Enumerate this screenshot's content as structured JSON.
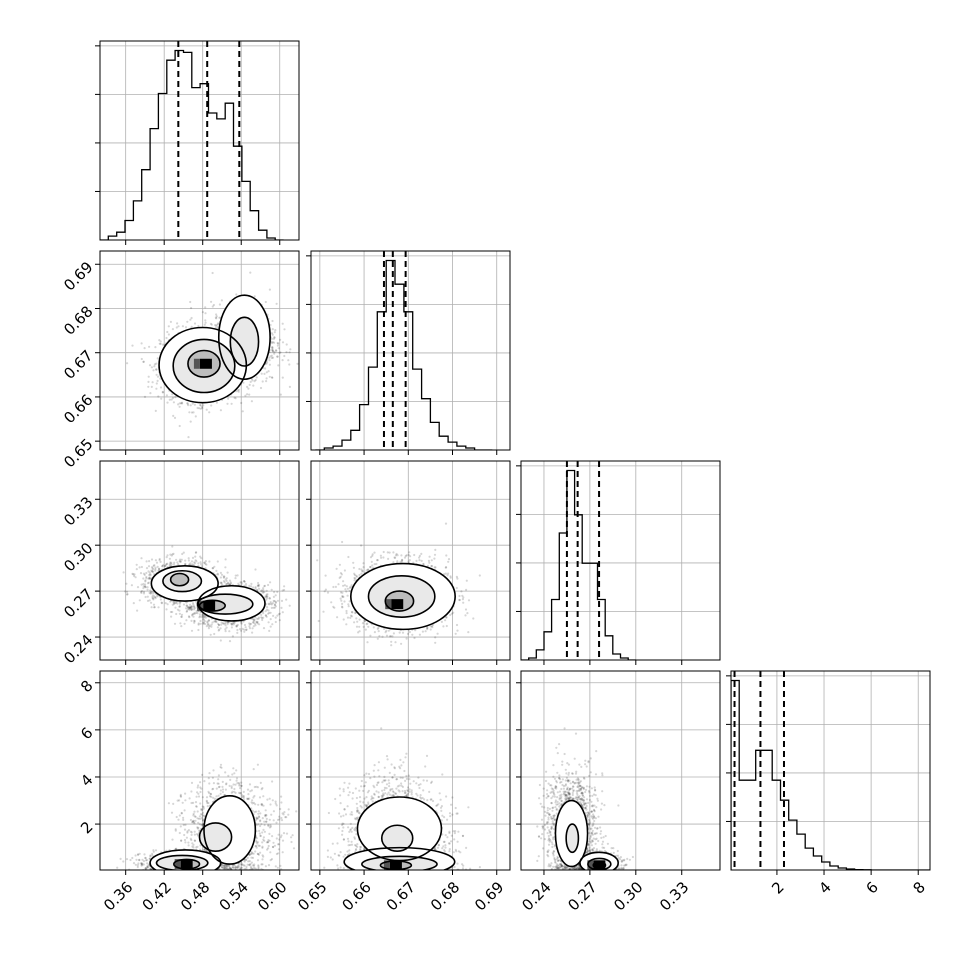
{
  "chart_data": {
    "type": "scatter",
    "title": "",
    "params": [
      {
        "range": [
          0.32,
          0.63
        ],
        "ticks": [
          0.36,
          0.42,
          0.48,
          0.54,
          0.6
        ],
        "tick_labels": [
          "0.36",
          "0.42",
          "0.48",
          "0.54",
          "0.60"
        ],
        "quantiles": [
          0.442,
          0.487,
          0.537
        ],
        "hist": {
          "edges": [
            0.32,
            0.333,
            0.346,
            0.359,
            0.372,
            0.385,
            0.398,
            0.411,
            0.424,
            0.437,
            0.45,
            0.463,
            0.476,
            0.489,
            0.502,
            0.515,
            0.528,
            0.541,
            0.554,
            0.567,
            0.58,
            0.593,
            0.606
          ],
          "counts": [
            0,
            2,
            4,
            10,
            20,
            36,
            57,
            75,
            92,
            97,
            96,
            78,
            80,
            65,
            62,
            70,
            48,
            30,
            15,
            5,
            1,
            0
          ]
        }
      },
      {
        "range": [
          0.648,
          0.693
        ],
        "ticks": [
          0.65,
          0.66,
          0.67,
          0.68,
          0.69
        ],
        "tick_labels": [
          "0.65",
          "0.66",
          "0.67",
          "0.68",
          "0.69"
        ],
        "quantiles": [
          0.6645,
          0.6665,
          0.6694
        ],
        "hist": {
          "edges": [
            0.649,
            0.651,
            0.653,
            0.655,
            0.657,
            0.659,
            0.661,
            0.663,
            0.665,
            0.667,
            0.669,
            0.671,
            0.673,
            0.675,
            0.677,
            0.679,
            0.681,
            0.683,
            0.685,
            0.687,
            0.689
          ],
          "counts": [
            0,
            1,
            2,
            5,
            10,
            23,
            42,
            70,
            96,
            84,
            70,
            41,
            26,
            14,
            7,
            4,
            2,
            1,
            0,
            0
          ]
        }
      },
      {
        "range": [
          0.225,
          0.355
        ],
        "ticks": [
          0.24,
          0.27,
          0.3,
          0.33
        ],
        "tick_labels": [
          "0.24",
          "0.27",
          "0.30",
          "0.33"
        ],
        "quantiles": [
          0.255,
          0.262,
          0.276
        ],
        "hist": {
          "edges": [
            0.225,
            0.23,
            0.235,
            0.24,
            0.245,
            0.25,
            0.255,
            0.26,
            0.265,
            0.27,
            0.275,
            0.28,
            0.285,
            0.29,
            0.295,
            0.3
          ],
          "counts": [
            0,
            1,
            5,
            14,
            30,
            63,
            94,
            72,
            48,
            48,
            30,
            12,
            3,
            1,
            0
          ]
        }
      },
      {
        "range": [
          0.05,
          8.5
        ],
        "ticks": [
          2,
          4,
          6,
          8
        ],
        "tick_labels": [
          "2",
          "4",
          "6",
          "8"
        ],
        "y_ticks": [
          2,
          4,
          6,
          8
        ],
        "y_tick_labels": [
          "2",
          "4",
          "6",
          "8"
        ],
        "quantiles": [
          0.2,
          1.3,
          2.3
        ],
        "hist": {
          "edges": [
            0.05,
            0.4,
            0.75,
            1.1,
            1.45,
            1.8,
            2.15,
            2.5,
            2.85,
            3.2,
            3.55,
            3.9,
            4.25,
            4.6,
            4.95,
            5.3,
            5.65,
            6.0,
            8.5
          ],
          "counts": [
            95,
            45,
            45,
            60,
            60,
            45,
            35,
            25,
            18,
            11,
            7,
            4,
            2,
            1,
            0.5,
            0.2,
            0.1,
            0
          ]
        }
      }
    ],
    "pairs": [
      {
        "row": 1,
        "col": 0,
        "scatter": {
          "blobs": [
            {
              "cx": 0.475,
              "cy": 0.667,
              "sx": 0.03,
              "sy": 0.004,
              "n": 1500
            },
            {
              "cx": 0.545,
              "cy": 0.672,
              "sx": 0.025,
              "sy": 0.0045,
              "n": 900
            }
          ]
        },
        "contours": [
          {
            "level": "outer",
            "shape": "pair",
            "a": {
              "cx": 0.48,
              "cy": 0.6672,
              "rx": 0.068,
              "ry": 0.0085
            },
            "b": {
              "cx": 0.545,
              "cy": 0.6735,
              "rx": 0.04,
              "ry": 0.0095
            }
          },
          {
            "level": "mid",
            "shape": "pair",
            "a": {
              "cx": 0.482,
              "cy": 0.667,
              "rx": 0.048,
              "ry": 0.006
            },
            "b": {
              "cx": 0.545,
              "cy": 0.6725,
              "rx": 0.022,
              "ry": 0.0055
            }
          },
          {
            "level": "inner",
            "shape": "ellipse",
            "a": {
              "cx": 0.482,
              "cy": 0.6675,
              "rx": 0.025,
              "ry": 0.003
            }
          }
        ],
        "peak": {
          "x": 0.485,
          "y": 0.6675
        }
      },
      {
        "row": 2,
        "col": 0,
        "scatter": {
          "blobs": [
            {
              "cx": 0.445,
              "cy": 0.276,
              "sx": 0.03,
              "sy": 0.007,
              "n": 1100
            },
            {
              "cx": 0.52,
              "cy": 0.261,
              "sx": 0.035,
              "sy": 0.007,
              "n": 1400
            }
          ]
        },
        "contours": [
          {
            "level": "outer",
            "shape": "pair",
            "a": {
              "cx": 0.452,
              "cy": 0.275,
              "rx": 0.052,
              "ry": 0.0115
            },
            "b": {
              "cx": 0.525,
              "cy": 0.262,
              "rx": 0.052,
              "ry": 0.0115
            }
          },
          {
            "level": "mid",
            "shape": "pair",
            "a": {
              "cx": 0.448,
              "cy": 0.2765,
              "rx": 0.03,
              "ry": 0.0068
            },
            "b": {
              "cx": 0.515,
              "cy": 0.2615,
              "rx": 0.043,
              "ry": 0.0065
            }
          },
          {
            "level": "inner",
            "shape": "pair",
            "a": {
              "cx": 0.444,
              "cy": 0.2775,
              "rx": 0.014,
              "ry": 0.004
            },
            "b": {
              "cx": 0.495,
              "cy": 0.2605,
              "rx": 0.02,
              "ry": 0.0035
            }
          }
        ],
        "peak": {
          "x": 0.49,
          "y": 0.2605
        }
      },
      {
        "row": 2,
        "col": 1,
        "scatter": {
          "blobs": [
            {
              "cx": 0.668,
              "cy": 0.267,
              "sx": 0.0055,
              "sy": 0.011,
              "n": 2200
            }
          ]
        },
        "contours": [
          {
            "level": "outer",
            "shape": "ellipse",
            "a": {
              "cx": 0.6688,
              "cy": 0.2665,
              "rx": 0.0118,
              "ry": 0.0215
            }
          },
          {
            "level": "mid",
            "shape": "ellipse",
            "a": {
              "cx": 0.6685,
              "cy": 0.2665,
              "rx": 0.0075,
              "ry": 0.0135
            }
          },
          {
            "level": "inner",
            "shape": "ellipse",
            "a": {
              "cx": 0.668,
              "cy": 0.2635,
              "rx": 0.0032,
              "ry": 0.0065
            }
          }
        ],
        "peak": {
          "x": 0.6675,
          "y": 0.2615
        }
      },
      {
        "row": 3,
        "col": 0,
        "scatter": {
          "blobs": [
            {
              "cx": 0.455,
              "cy": 0.3,
              "sx": 0.035,
              "sy": 0.25,
              "n": 900
            },
            {
              "cx": 0.52,
              "cy": 1.8,
              "sx": 0.035,
              "sy": 1.0,
              "n": 1300
            }
          ]
        },
        "contours": [
          {
            "level": "outer",
            "shape": "pair",
            "a": {
              "cx": 0.453,
              "cy": 0.35,
              "rx": 0.055,
              "ry": 0.55
            },
            "b": {
              "cx": 0.522,
              "cy": 1.75,
              "rx": 0.04,
              "ry": 1.45
            }
          },
          {
            "level": "mid",
            "shape": "pair",
            "a": {
              "cx": 0.448,
              "cy": 0.35,
              "rx": 0.04,
              "ry": 0.32
            },
            "b": {
              "cx": 0.5,
              "cy": 1.45,
              "rx": 0.025,
              "ry": 0.6
            }
          },
          {
            "level": "inner",
            "shape": "ellipse",
            "a": {
              "cx": 0.455,
              "cy": 0.3,
              "rx": 0.02,
              "ry": 0.2
            }
          }
        ],
        "peak": {
          "x": 0.455,
          "y": 0.3
        }
      },
      {
        "row": 3,
        "col": 1,
        "scatter": {
          "blobs": [
            {
              "cx": 0.668,
              "cy": 0.4,
              "sx": 0.0055,
              "sy": 0.4,
              "n": 1000
            },
            {
              "cx": 0.667,
              "cy": 1.9,
              "sx": 0.0055,
              "sy": 1.1,
              "n": 1300
            }
          ]
        },
        "contours": [
          {
            "level": "outer",
            "shape": "pair",
            "a": {
              "cx": 0.668,
              "cy": 0.4,
              "rx": 0.0125,
              "ry": 0.6
            },
            "b": {
              "cx": 0.668,
              "cy": 1.8,
              "rx": 0.0095,
              "ry": 1.35
            }
          },
          {
            "level": "mid",
            "shape": "pair",
            "a": {
              "cx": 0.668,
              "cy": 0.3,
              "rx": 0.0085,
              "ry": 0.33
            },
            "b": {
              "cx": 0.6675,
              "cy": 1.4,
              "rx": 0.0035,
              "ry": 0.55
            }
          },
          {
            "level": "inner",
            "shape": "ellipse",
            "a": {
              "cx": 0.6672,
              "cy": 0.25,
              "rx": 0.0035,
              "ry": 0.18
            }
          }
        ],
        "peak": {
          "x": 0.6672,
          "y": 0.25
        }
      },
      {
        "row": 3,
        "col": 2,
        "scatter": {
          "blobs": [
            {
              "cx": 0.258,
              "cy": 1.9,
              "sx": 0.008,
              "sy": 1.1,
              "n": 1500
            },
            {
              "cx": 0.275,
              "cy": 0.3,
              "sx": 0.007,
              "sy": 0.25,
              "n": 900
            }
          ]
        },
        "contours": [
          {
            "level": "outer",
            "shape": "pair",
            "a": {
              "cx": 0.258,
              "cy": 1.6,
              "rx": 0.0105,
              "ry": 1.4
            },
            "b": {
              "cx": 0.276,
              "cy": 0.35,
              "rx": 0.0125,
              "ry": 0.45
            }
          },
          {
            "level": "mid",
            "shape": "pair",
            "a": {
              "cx": 0.2585,
              "cy": 1.4,
              "rx": 0.004,
              "ry": 0.6
            },
            "b": {
              "cx": 0.2762,
              "cy": 0.3,
              "rx": 0.0075,
              "ry": 0.24
            }
          },
          {
            "level": "inner",
            "shape": "ellipse",
            "a": {
              "cx": 0.2762,
              "cy": 0.25,
              "rx": 0.004,
              "ry": 0.15
            }
          }
        ],
        "peak": {
          "x": 0.2762,
          "y": 0.25
        }
      }
    ],
    "grid": true,
    "legend": "none"
  }
}
